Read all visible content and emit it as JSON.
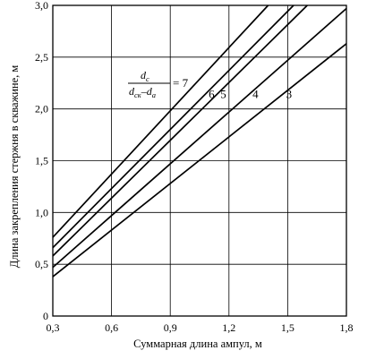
{
  "chart_data": {
    "type": "line",
    "xlabel": "Суммарная длина ампул, м",
    "ylabel": "Длина закрепления стержня в скважине, м",
    "xlim": [
      0.3,
      1.8
    ],
    "ylim": [
      0,
      3.0
    ],
    "x_ticks": [
      "0,3",
      "0,6",
      "0,9",
      "1,2",
      "1,5",
      "1,8"
    ],
    "y_ticks": [
      "0",
      "0,5",
      "1,0",
      "1,5",
      "2,0",
      "2,5",
      "3,0"
    ],
    "x_tick_values": [
      0.3,
      0.6,
      0.9,
      1.2,
      1.5,
      1.8
    ],
    "y_tick_values": [
      0,
      0.5,
      1.0,
      1.5,
      2.0,
      2.5,
      3.0
    ],
    "grid": true,
    "formula": {
      "numerator": "d",
      "numerator_sub": "c",
      "den_a": "d",
      "den_a_sub": "ск",
      "minus": "–",
      "den_b": "d",
      "den_b_sub": "а",
      "equals": "= 7"
    },
    "series": [
      {
        "label": "7",
        "x": [
          0.3,
          1.4
        ],
        "y": [
          0.76,
          3.0
        ]
      },
      {
        "label": "6",
        "x": [
          0.3,
          1.53
        ],
        "y": [
          0.66,
          3.0
        ]
      },
      {
        "label": "5",
        "x": [
          0.3,
          1.6
        ],
        "y": [
          0.58,
          3.0
        ]
      },
      {
        "label": "4",
        "x": [
          0.3,
          1.8
        ],
        "y": [
          0.47,
          2.97
        ]
      },
      {
        "label": "3",
        "x": [
          0.3,
          1.8
        ],
        "y": [
          0.38,
          2.63
        ]
      }
    ],
    "curve_labels": [
      "6",
      "5",
      "4",
      "3"
    ]
  }
}
